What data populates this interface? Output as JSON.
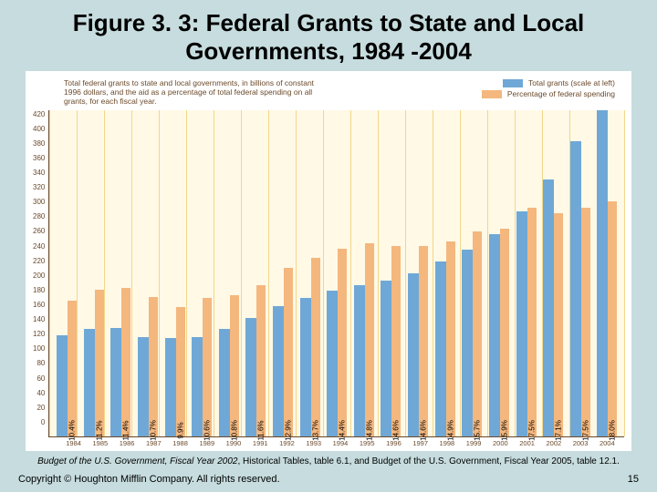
{
  "title": "Figure 3. 3: Federal Grants to State and Local Governments, 1984 -2004",
  "description": "Total federal grants to state and local governments, in billions of constant 1996 dollars, and the aid as a percentage of total federal spending on all grants, for each fiscal year.",
  "legend": {
    "series1": {
      "label": "Total grants (scale at left)",
      "color": "#6fa8d6"
    },
    "series2": {
      "label": "Percentage of federal spending",
      "color": "#f4b77e"
    }
  },
  "chart": {
    "type": "bar",
    "background": "#fff9e6",
    "grid_color": "#f2d78a",
    "ylim": [
      0,
      420
    ],
    "ytick_step": 20,
    "yticks": [
      420,
      400,
      380,
      360,
      340,
      320,
      300,
      280,
      260,
      240,
      220,
      200,
      180,
      160,
      140,
      120,
      100,
      80,
      60,
      40,
      20,
      0
    ],
    "orange_scale_top": 25,
    "years": [
      "1984",
      "1985",
      "1986",
      "1987",
      "1988",
      "1989",
      "1990",
      "1991",
      "1992",
      "1993",
      "1994",
      "1995",
      "1996",
      "1997",
      "1998",
      "1999",
      "2000",
      "2001",
      "2002",
      "2003",
      "2004"
    ],
    "blue_values": [
      130,
      138,
      140,
      128,
      126,
      128,
      138,
      152,
      168,
      178,
      188,
      195,
      200,
      210,
      225,
      240,
      260,
      290,
      330,
      380,
      420
    ],
    "orange_values": [
      10.4,
      11.2,
      11.4,
      10.7,
      9.9,
      10.6,
      10.8,
      11.6,
      12.9,
      13.7,
      14.4,
      14.8,
      14.6,
      14.6,
      14.9,
      15.7,
      15.9,
      17.5,
      17.1,
      17.5,
      18.0
    ],
    "orange_labels": [
      "10.4%",
      "11.2%",
      "11.4%",
      "10.7%",
      "9.9%",
      "10.6%",
      "10.8%",
      "11.6%",
      "12.9%",
      "13.7%",
      "14.4%",
      "14.8%",
      "14.6%",
      "14.6%",
      "14.9%",
      "15.7%",
      "15.9%",
      "17.5%",
      "17.1%",
      "17.5%",
      "18.0%"
    ]
  },
  "source_italic": "Budget of the U.S. Government, Fiscal Year 2002",
  "source_rest": ", Historical Tables, table 6.1, and Budget of the U.S. Government, Fiscal Year 2005, table 12.1.",
  "copyright": "Copyright © Houghton Mifflin Company. All rights reserved.",
  "page_number": "15"
}
